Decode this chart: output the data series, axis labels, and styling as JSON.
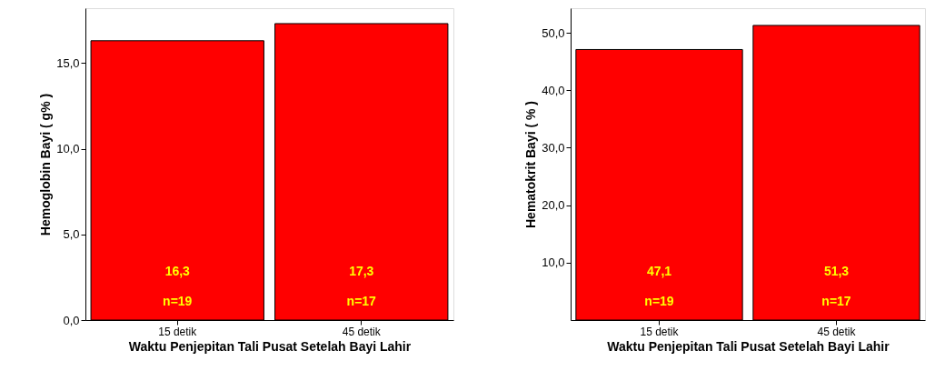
{
  "chart_data": [
    {
      "type": "bar",
      "xlabel": "Waktu Penjepitan Tali Pusat Setelah Bayi Lahir",
      "ylabel": "Hemoglobin Bayi ( g% )",
      "categories": [
        "15 detik",
        "45 detik"
      ],
      "series": [
        {
          "color": "#ff0000",
          "values": [
            16.3,
            17.3
          ]
        }
      ],
      "value_labels": [
        "16,3",
        "17,3"
      ],
      "annotations": [
        "n=19",
        "n=17"
      ],
      "ylim": [
        0,
        18.2
      ],
      "yticks": [
        {
          "value": 0,
          "label": "0,0"
        },
        {
          "value": 5,
          "label": "5,0"
        },
        {
          "value": 10,
          "label": "10,0"
        },
        {
          "value": 15,
          "label": "15,0"
        }
      ],
      "grid": false
    },
    {
      "type": "bar",
      "xlabel": "Waktu Penjepitan Tali Pusat Setelah Bayi Lahir",
      "ylabel": "Hematokrit Bayi ( % )",
      "categories": [
        "15 detik",
        "45 detik"
      ],
      "series": [
        {
          "color": "#ff0000",
          "values": [
            47.1,
            51.3
          ]
        }
      ],
      "value_labels": [
        "47,1",
        "51,3"
      ],
      "annotations": [
        "n=19",
        "n=17"
      ],
      "ylim": [
        0,
        54.3
      ],
      "yticks": [
        {
          "value": 10,
          "label": "10,0"
        },
        {
          "value": 20,
          "label": "20,0"
        },
        {
          "value": 30,
          "label": "30,0"
        },
        {
          "value": 40,
          "label": "40,0"
        },
        {
          "value": 50,
          "label": "50,0"
        }
      ],
      "grid": false
    }
  ]
}
